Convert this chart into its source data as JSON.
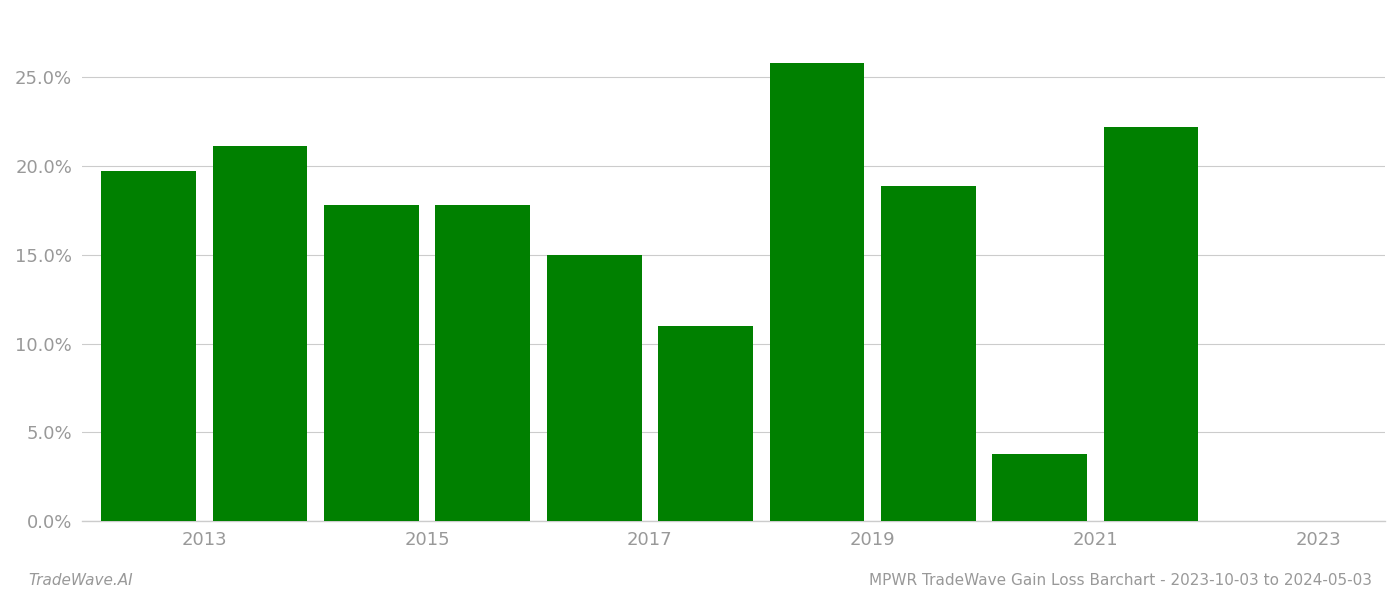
{
  "years": [
    2013,
    2014,
    2015,
    2016,
    2017,
    2018,
    2019,
    2020,
    2021,
    2022
  ],
  "values": [
    0.197,
    0.211,
    0.178,
    0.178,
    0.15,
    0.11,
    0.258,
    0.189,
    0.038,
    0.222
  ],
  "bar_color": "#008000",
  "background_color": "#ffffff",
  "grid_color": "#cccccc",
  "ylim": [
    0,
    0.285
  ],
  "yticks": [
    0.0,
    0.05,
    0.1,
    0.15,
    0.2,
    0.25
  ],
  "xtick_labels": [
    "2013",
    "2015",
    "2017",
    "2019",
    "2021",
    "2023"
  ],
  "footer_left": "TradeWave.AI",
  "footer_right": "MPWR TradeWave Gain Loss Barchart - 2023-10-03 to 2024-05-03",
  "footer_fontsize": 11,
  "tick_fontsize": 13,
  "axis_color": "#999999",
  "spine_color": "#cccccc",
  "bar_width": 0.85
}
